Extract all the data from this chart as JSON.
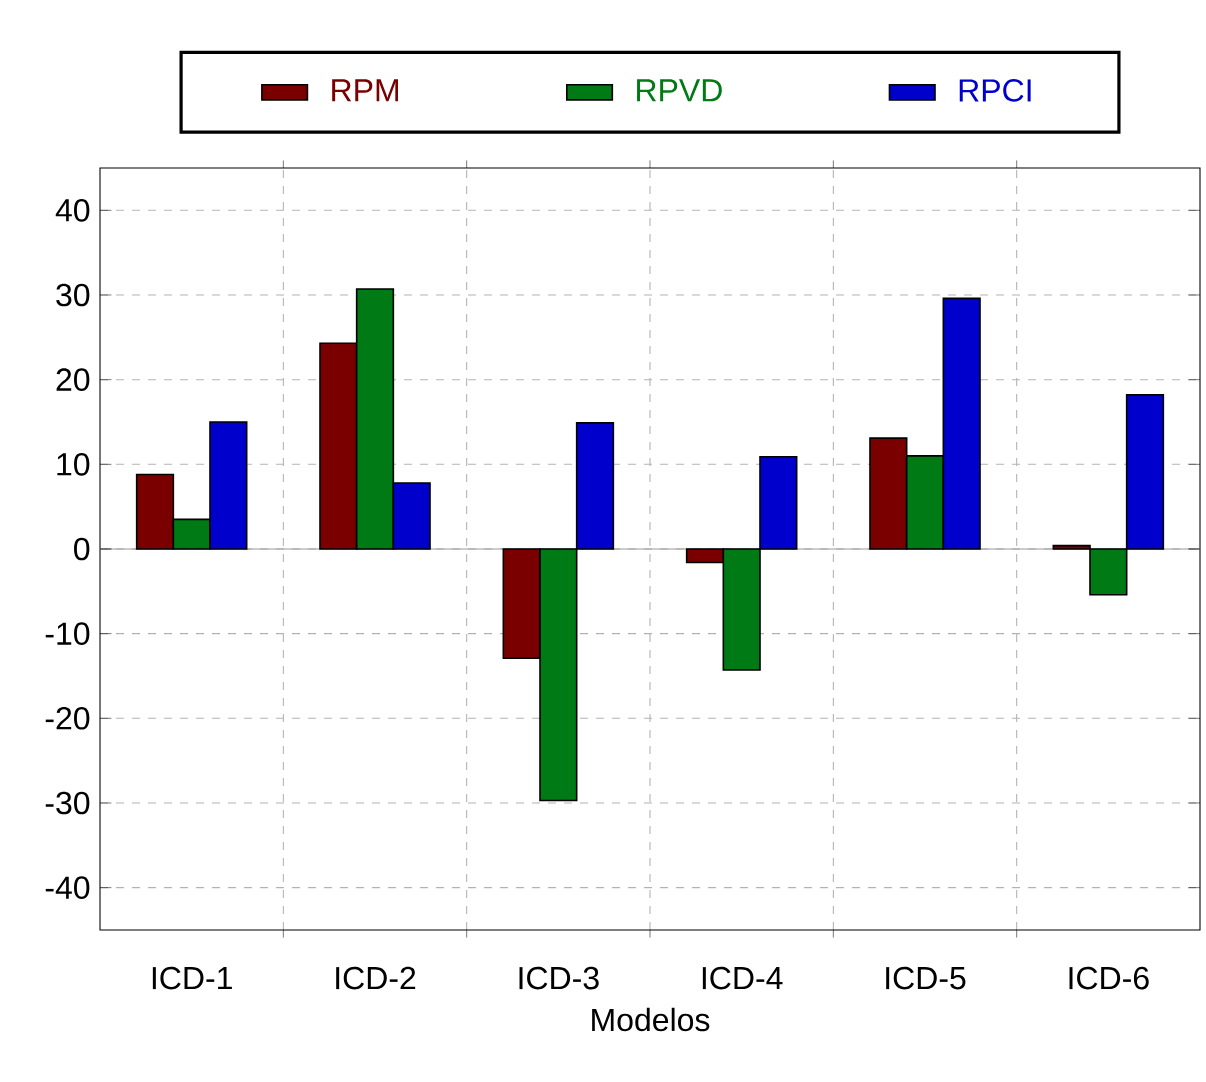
{
  "chart_data": {
    "type": "bar",
    "xlabel": "Modelos",
    "categories": [
      "ICD-1",
      "ICD-2",
      "ICD-3",
      "ICD-4",
      "ICD-5",
      "ICD-6"
    ],
    "series": [
      {
        "name": "RPM",
        "color": "#7a0000",
        "values": [
          8.8,
          24.3,
          -12.9,
          -1.6,
          13.1,
          0.4
        ]
      },
      {
        "name": "RPVD",
        "color": "#007a14",
        "values": [
          3.5,
          30.7,
          -29.7,
          -14.3,
          11.0,
          -5.4
        ]
      },
      {
        "name": "RPCI",
        "color": "#0000cc",
        "values": [
          15.0,
          7.8,
          14.9,
          10.9,
          29.6,
          18.2
        ]
      }
    ],
    "ylim": [
      -45,
      45
    ],
    "yticks": [
      -40,
      -30,
      -20,
      -10,
      0,
      10,
      20,
      30,
      40
    ],
    "grid": true,
    "legend": "top"
  }
}
